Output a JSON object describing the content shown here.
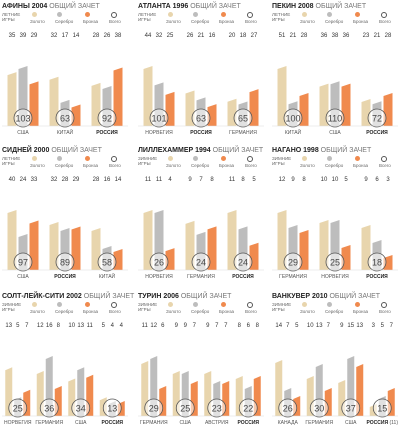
{
  "colors": {
    "gold": "#e8d5ad",
    "silver": "#bdbdbd",
    "bronze": "#f08a4e",
    "total_ring": "#555555"
  },
  "legend_summer_label": [
    "ЛЕТНИЕ",
    "ИГРЫ"
  ],
  "legend_winter_label": [
    "ЗИМНИЕ",
    "ИГРЫ"
  ],
  "legend_items": [
    "Золото",
    "Серебро",
    "Бронза",
    "Всего"
  ],
  "chart_data": [
    {
      "type": "bar",
      "title": "АФИНЫ 2004",
      "subtitle": "ОБЩИЙ ЗАЧЕТ",
      "season": "summer",
      "categories": [
        "США",
        "КИТАЙ",
        "РОССИЯ"
      ],
      "series": [
        {
          "name": "Золото",
          "values": [
            35,
            32,
            28
          ]
        },
        {
          "name": "Серебро",
          "values": [
            39,
            17,
            26
          ]
        },
        {
          "name": "Бронза",
          "values": [
            29,
            14,
            38
          ]
        },
        {
          "name": "Всего",
          "values": [
            103,
            63,
            92
          ]
        }
      ]
    },
    {
      "type": "bar",
      "title": "АТЛАНТА 1996",
      "subtitle": "ОБЩИЙ ЗАЧЕТ",
      "season": "summer",
      "categories": [
        "НОРВЕГИЯ",
        "РОССИЯ",
        "ГЕРМАНИЯ"
      ],
      "series": [
        {
          "name": "Золото",
          "values": [
            44,
            26,
            20
          ]
        },
        {
          "name": "Серебро",
          "values": [
            32,
            21,
            18
          ]
        },
        {
          "name": "Бронза",
          "values": [
            25,
            16,
            27
          ]
        },
        {
          "name": "Всего",
          "values": [
            101,
            63,
            65
          ]
        }
      ]
    },
    {
      "type": "bar",
      "title": "ПЕКИН 2008",
      "subtitle": "ОБЩИЙ ЗАЧЕТ",
      "season": "summer",
      "categories": [
        "КИТАЙ",
        "США",
        "РОССИЯ"
      ],
      "series": [
        {
          "name": "Золото",
          "values": [
            51,
            36,
            23
          ]
        },
        {
          "name": "Серебро",
          "values": [
            21,
            38,
            21
          ]
        },
        {
          "name": "Бронза",
          "values": [
            28,
            36,
            28
          ]
        },
        {
          "name": "Всего",
          "values": [
            100,
            110,
            72
          ]
        }
      ]
    },
    {
      "type": "bar",
      "title": "СИДНЕЙ 2000",
      "subtitle": "ОБЩИЙ ЗАЧЕТ",
      "season": "summer",
      "categories": [
        "США",
        "РОССИЯ",
        "КИТАЙ"
      ],
      "series": [
        {
          "name": "Золото",
          "values": [
            40,
            32,
            28
          ]
        },
        {
          "name": "Серебро",
          "values": [
            24,
            28,
            16
          ]
        },
        {
          "name": "Бронза",
          "values": [
            33,
            29,
            14
          ]
        },
        {
          "name": "Всего",
          "values": [
            97,
            89,
            58
          ]
        }
      ]
    },
    {
      "type": "bar",
      "title": "ЛИЛЛЕХАММЕР 1994",
      "subtitle": "ОБЩИЙ ЗАЧЕТ",
      "season": "winter",
      "categories": [
        "НОРВЕГИЯ",
        "ГЕРМАНИЯ",
        "РОССИЯ"
      ],
      "series": [
        {
          "name": "Золото",
          "values": [
            11,
            9,
            11
          ]
        },
        {
          "name": "Серебро",
          "values": [
            11,
            7,
            8
          ]
        },
        {
          "name": "Бронза",
          "values": [
            4,
            8,
            5
          ]
        },
        {
          "name": "Всего",
          "values": [
            26,
            24,
            24
          ]
        }
      ]
    },
    {
      "type": "bar",
      "title": "НАГАНО 1998",
      "subtitle": "ОБЩИЙ ЗАЧЕТ",
      "season": "winter",
      "categories": [
        "ГЕРМАНИЯ",
        "НОРВЕГИЯ",
        "РОССИЯ"
      ],
      "series": [
        {
          "name": "Золото",
          "values": [
            12,
            10,
            9
          ]
        },
        {
          "name": "Серебро",
          "values": [
            9,
            10,
            6
          ]
        },
        {
          "name": "Бронза",
          "values": [
            8,
            5,
            3
          ]
        },
        {
          "name": "Всего",
          "values": [
            29,
            25,
            18
          ]
        }
      ]
    },
    {
      "type": "bar",
      "title": "СОЛТ-ЛЕЙК-СИТИ 2002",
      "subtitle": "ОБЩИЙ ЗАЧЕТ",
      "season": "winter",
      "categories": [
        "НОРВЕГИЯ",
        "ГЕРМАНИЯ",
        "США",
        "РОССИЯ"
      ],
      "series": [
        {
          "name": "Золото",
          "values": [
            13,
            12,
            10,
            5
          ]
        },
        {
          "name": "Серебро",
          "values": [
            5,
            16,
            13,
            4
          ]
        },
        {
          "name": "Бронза",
          "values": [
            7,
            8,
            11,
            4
          ]
        },
        {
          "name": "Всего",
          "values": [
            25,
            36,
            34,
            13
          ]
        }
      ]
    },
    {
      "type": "bar",
      "title": "ТУРИН 2006",
      "subtitle": "ОБЩИЙ ЗАЧЕТ",
      "season": "winter",
      "categories": [
        "ГЕРМАНИЯ",
        "США",
        "АВСТРИЯ",
        "РОССИЯ"
      ],
      "series": [
        {
          "name": "Золото",
          "values": [
            11,
            9,
            9,
            8
          ]
        },
        {
          "name": "Серебро",
          "values": [
            12,
            9,
            7,
            6
          ]
        },
        {
          "name": "Бронза",
          "values": [
            6,
            7,
            7,
            8
          ]
        },
        {
          "name": "Всего",
          "values": [
            29,
            25,
            23,
            22
          ]
        }
      ]
    },
    {
      "type": "bar",
      "title": "ВАНКУВЕР 2010",
      "subtitle": "ОБЩИЙ ЗАЧЕТ",
      "season": "winter",
      "categories": [
        "КАНАДА",
        "ГЕРМАНИЯ",
        "США",
        "РОССИЯ"
      ],
      "category_notes": [
        "",
        "",
        "",
        "(11)"
      ],
      "series": [
        {
          "name": "Золото",
          "values": [
            14,
            10,
            9,
            3
          ]
        },
        {
          "name": "Серебро",
          "values": [
            7,
            13,
            15,
            5
          ]
        },
        {
          "name": "Бронза",
          "values": [
            5,
            7,
            13,
            7
          ]
        },
        {
          "name": "Всего",
          "values": [
            26,
            30,
            37,
            15
          ]
        }
      ]
    }
  ]
}
